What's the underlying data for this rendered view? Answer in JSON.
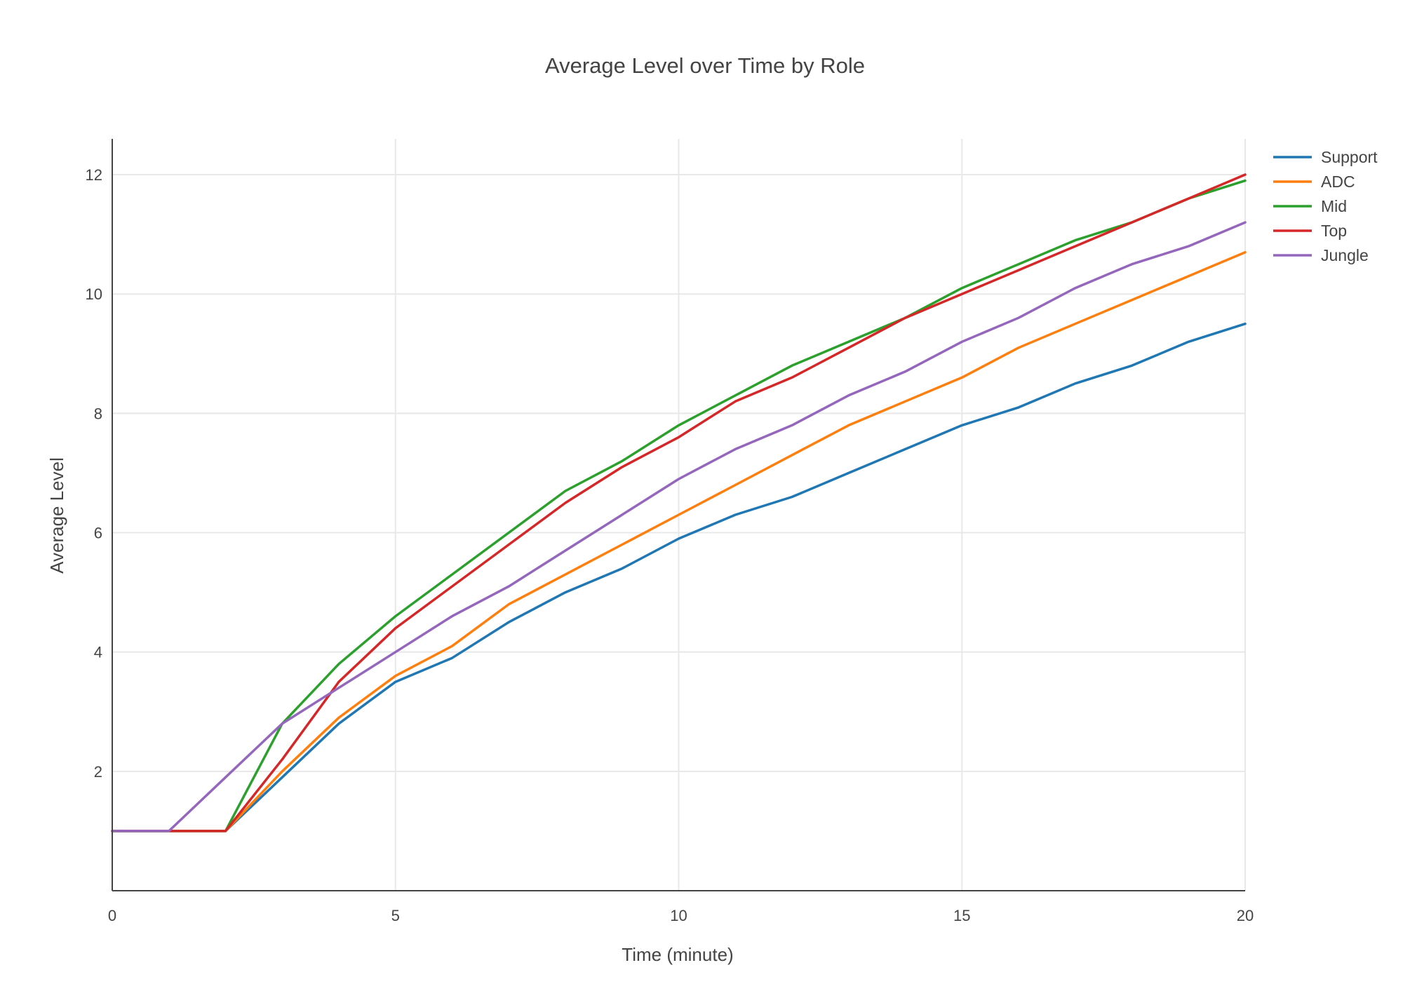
{
  "chart_data": {
    "type": "line",
    "title": "Average Level over Time by Role",
    "xlabel": "Time (minute)",
    "ylabel": "Average Level",
    "xlim": [
      0,
      20
    ],
    "ylim": [
      0,
      12.6
    ],
    "xticks": [
      0,
      5,
      10,
      15,
      20
    ],
    "yticks": [
      2,
      4,
      6,
      8,
      10,
      12
    ],
    "grid": true,
    "legend_position": "top-right",
    "x": [
      0,
      1,
      2,
      3,
      4,
      5,
      6,
      7,
      8,
      9,
      10,
      11,
      12,
      13,
      14,
      15,
      16,
      17,
      18,
      19,
      20
    ],
    "series": [
      {
        "name": "Support",
        "color": "#1f77b4",
        "values": [
          1,
          1,
          1,
          1.9,
          2.8,
          3.5,
          3.9,
          4.5,
          5.0,
          5.4,
          5.9,
          6.3,
          6.6,
          7.0,
          7.4,
          7.8,
          8.1,
          8.5,
          8.8,
          9.2,
          9.5
        ]
      },
      {
        "name": "ADC",
        "color": "#ff7f0e",
        "values": [
          1,
          1,
          1,
          2.0,
          2.9,
          3.6,
          4.1,
          4.8,
          5.3,
          5.8,
          6.3,
          6.8,
          7.3,
          7.8,
          8.2,
          8.6,
          9.1,
          9.5,
          9.9,
          10.3,
          10.7
        ]
      },
      {
        "name": "Mid",
        "color": "#2ca02c",
        "values": [
          1,
          1,
          1,
          2.8,
          3.8,
          4.6,
          5.3,
          6.0,
          6.7,
          7.2,
          7.8,
          8.3,
          8.8,
          9.2,
          9.6,
          10.1,
          10.5,
          10.9,
          11.2,
          11.6,
          11.9
        ]
      },
      {
        "name": "Top",
        "color": "#d62728",
        "values": [
          1,
          1,
          1,
          2.2,
          3.5,
          4.4,
          5.1,
          5.8,
          6.5,
          7.1,
          7.6,
          8.2,
          8.6,
          9.1,
          9.6,
          10.0,
          10.4,
          10.8,
          11.2,
          11.6,
          12.0
        ]
      },
      {
        "name": "Jungle",
        "color": "#9467bd",
        "values": [
          1,
          1,
          1.9,
          2.8,
          3.4,
          4.0,
          4.6,
          5.1,
          5.7,
          6.3,
          6.9,
          7.4,
          7.8,
          8.3,
          8.7,
          9.2,
          9.6,
          10.1,
          10.5,
          10.8,
          11.2
        ]
      }
    ]
  }
}
